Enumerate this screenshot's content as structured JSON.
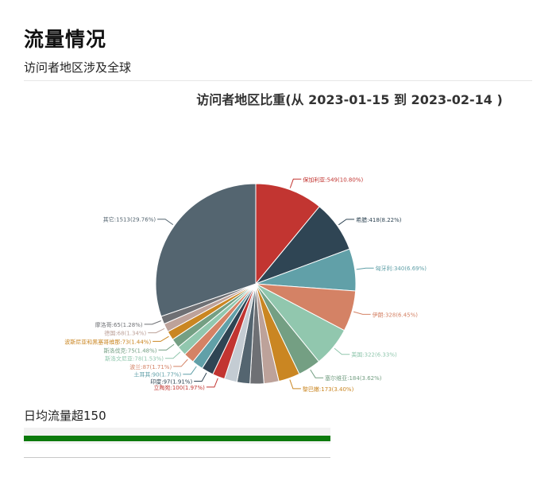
{
  "header": {
    "title": "流量情况",
    "subtitle": "访问者地区涉及全球"
  },
  "chart_data": {
    "type": "pie",
    "title": "访问者地区比重(从 2023-01-15 到 2023-02-14 )",
    "slices": [
      {
        "label": "保加利亚:549(10.80%)",
        "value": 549,
        "color": "#c23531"
      },
      {
        "label": "希腊:418(8.22%)",
        "value": 418,
        "color": "#2f4554"
      },
      {
        "label": "匈牙利:340(6.69%)",
        "value": 340,
        "color": "#61a0a8"
      },
      {
        "label": "伊朗:328(6.45%)",
        "value": 328,
        "color": "#d48265"
      },
      {
        "label": "美国:322(6.33%)",
        "value": 322,
        "color": "#91c7ae"
      },
      {
        "label": "塞尔维亚:184(3.62%)",
        "value": 184,
        "color": "#749f83"
      },
      {
        "label": "黎巴嫩:173(3.40%)",
        "value": 173,
        "color": "#ca8622"
      },
      {
        "label": "",
        "value": 120,
        "color": "#bda29a"
      },
      {
        "label": "",
        "value": 112,
        "color": "#6e7074"
      },
      {
        "label": "",
        "value": 105,
        "color": "#546570"
      },
      {
        "label": "",
        "value": 102,
        "color": "#c4ccd3"
      },
      {
        "label": "立陶宛:100(1.97%)",
        "value": 100,
        "color": "#c23531"
      },
      {
        "label": "印度:97(1.91%)",
        "value": 97,
        "color": "#2f4554"
      },
      {
        "label": "土耳其:90(1.77%)",
        "value": 90,
        "color": "#61a0a8"
      },
      {
        "label": "波兰:87(1.71%)",
        "value": 87,
        "color": "#d48265"
      },
      {
        "label": "斯洛文尼亚:78(1.53%)",
        "value": 78,
        "color": "#91c7ae"
      },
      {
        "label": "斯洛伐克:75(1.48%)",
        "value": 75,
        "color": "#749f83"
      },
      {
        "label": "波斯尼亚和黑塞哥维那:73(1.44%)",
        "value": 73,
        "color": "#ca8622"
      },
      {
        "label": "德国:68(1.34%)",
        "value": 68,
        "color": "#bda29a"
      },
      {
        "label": "摩洛哥:65(1.28%)",
        "value": 65,
        "color": "#6e7074"
      },
      {
        "label": "其它:1513(29.76%)",
        "value": 1513,
        "color": "#546570"
      }
    ]
  },
  "traffic": {
    "label": "日均流量超150",
    "fill_fraction": 1.0,
    "color": "#0b7a0b"
  }
}
